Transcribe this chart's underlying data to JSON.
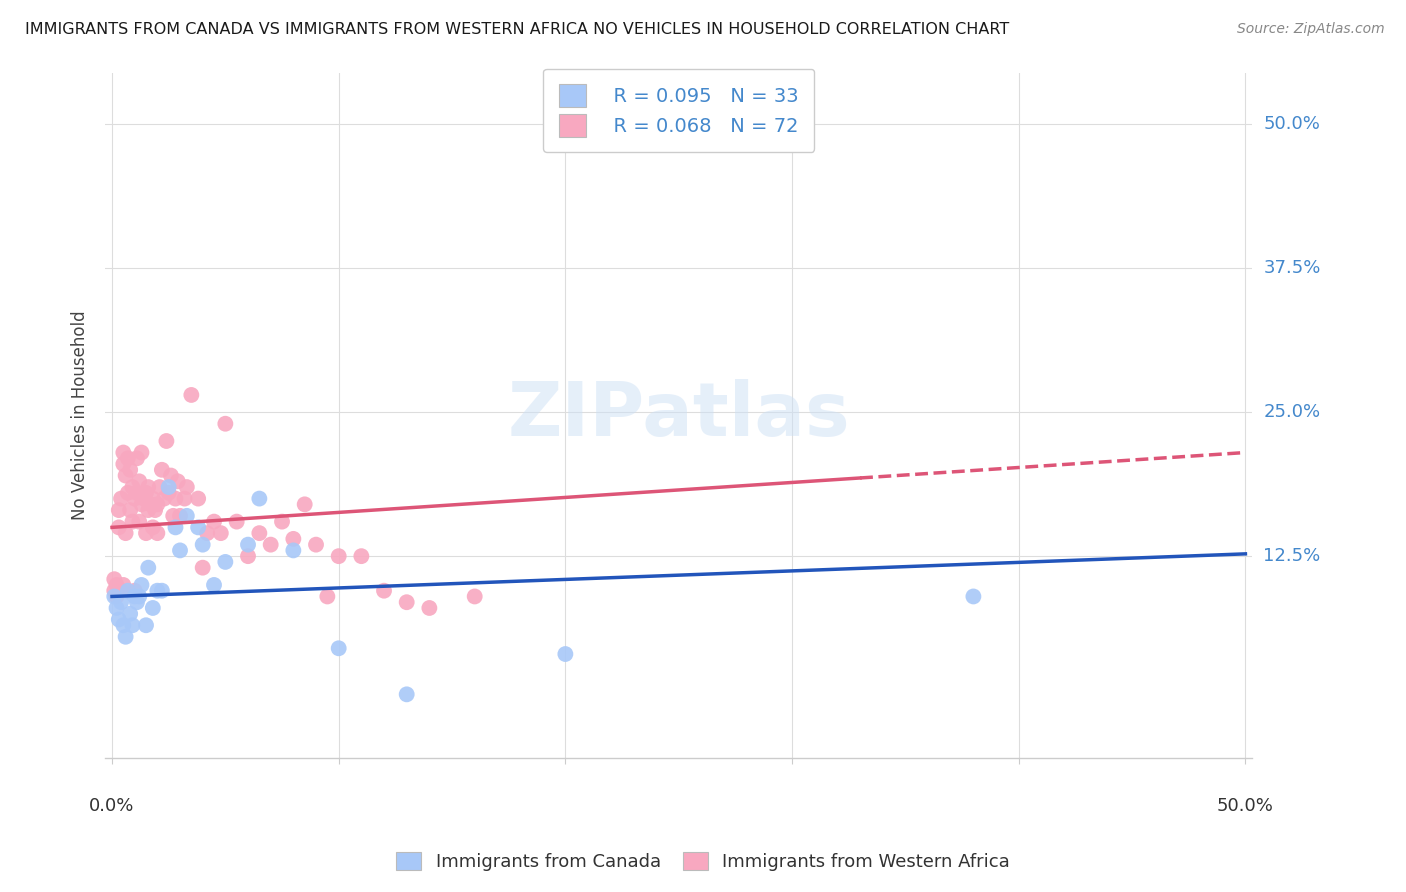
{
  "title": "IMMIGRANTS FROM CANADA VS IMMIGRANTS FROM WESTERN AFRICA NO VEHICLES IN HOUSEHOLD CORRELATION CHART",
  "source": "Source: ZipAtlas.com",
  "ylabel": "No Vehicles in Household",
  "ytick_labels": [
    "50.0%",
    "37.5%",
    "25.0%",
    "12.5%"
  ],
  "ytick_values": [
    0.5,
    0.375,
    0.25,
    0.125
  ],
  "watermark": "ZIPatlas",
  "legend_r1": "R = 0.095",
  "legend_n1": "N = 33",
  "legend_r2": "R = 0.068",
  "legend_n2": "N = 72",
  "color_canada": "#a8c8f8",
  "color_canada_line": "#2255bb",
  "color_wafrika": "#f8a8c0",
  "color_wafrika_line": "#dd5577",
  "canada_x": [
    0.001,
    0.002,
    0.003,
    0.004,
    0.005,
    0.006,
    0.007,
    0.008,
    0.009,
    0.01,
    0.011,
    0.012,
    0.013,
    0.015,
    0.016,
    0.018,
    0.02,
    0.022,
    0.025,
    0.028,
    0.03,
    0.033,
    0.038,
    0.04,
    0.045,
    0.05,
    0.06,
    0.065,
    0.08,
    0.1,
    0.13,
    0.2,
    0.38
  ],
  "canada_y": [
    0.09,
    0.08,
    0.07,
    0.085,
    0.065,
    0.055,
    0.095,
    0.075,
    0.065,
    0.09,
    0.085,
    0.09,
    0.1,
    0.065,
    0.115,
    0.08,
    0.095,
    0.095,
    0.185,
    0.15,
    0.13,
    0.16,
    0.15,
    0.135,
    0.1,
    0.12,
    0.135,
    0.175,
    0.13,
    0.045,
    0.005,
    0.04,
    0.09
  ],
  "wafrika_x": [
    0.001,
    0.001,
    0.002,
    0.002,
    0.003,
    0.003,
    0.004,
    0.004,
    0.005,
    0.005,
    0.005,
    0.006,
    0.006,
    0.007,
    0.007,
    0.008,
    0.008,
    0.009,
    0.009,
    0.01,
    0.01,
    0.011,
    0.011,
    0.012,
    0.012,
    0.013,
    0.013,
    0.014,
    0.015,
    0.015,
    0.016,
    0.016,
    0.017,
    0.018,
    0.018,
    0.019,
    0.02,
    0.02,
    0.021,
    0.022,
    0.023,
    0.024,
    0.025,
    0.026,
    0.027,
    0.028,
    0.029,
    0.03,
    0.032,
    0.033,
    0.035,
    0.038,
    0.04,
    0.042,
    0.045,
    0.048,
    0.05,
    0.055,
    0.06,
    0.065,
    0.07,
    0.075,
    0.08,
    0.085,
    0.09,
    0.095,
    0.1,
    0.11,
    0.12,
    0.13,
    0.14,
    0.16
  ],
  "wafrika_y": [
    0.095,
    0.105,
    0.09,
    0.1,
    0.15,
    0.165,
    0.095,
    0.175,
    0.1,
    0.205,
    0.215,
    0.145,
    0.195,
    0.18,
    0.21,
    0.165,
    0.2,
    0.155,
    0.185,
    0.095,
    0.175,
    0.18,
    0.21,
    0.155,
    0.19,
    0.17,
    0.215,
    0.175,
    0.145,
    0.18,
    0.165,
    0.185,
    0.17,
    0.15,
    0.175,
    0.165,
    0.145,
    0.17,
    0.185,
    0.2,
    0.175,
    0.225,
    0.18,
    0.195,
    0.16,
    0.175,
    0.19,
    0.16,
    0.175,
    0.185,
    0.265,
    0.175,
    0.115,
    0.145,
    0.155,
    0.145,
    0.24,
    0.155,
    0.125,
    0.145,
    0.135,
    0.155,
    0.14,
    0.17,
    0.135,
    0.09,
    0.125,
    0.125,
    0.095,
    0.085,
    0.08,
    0.09
  ]
}
